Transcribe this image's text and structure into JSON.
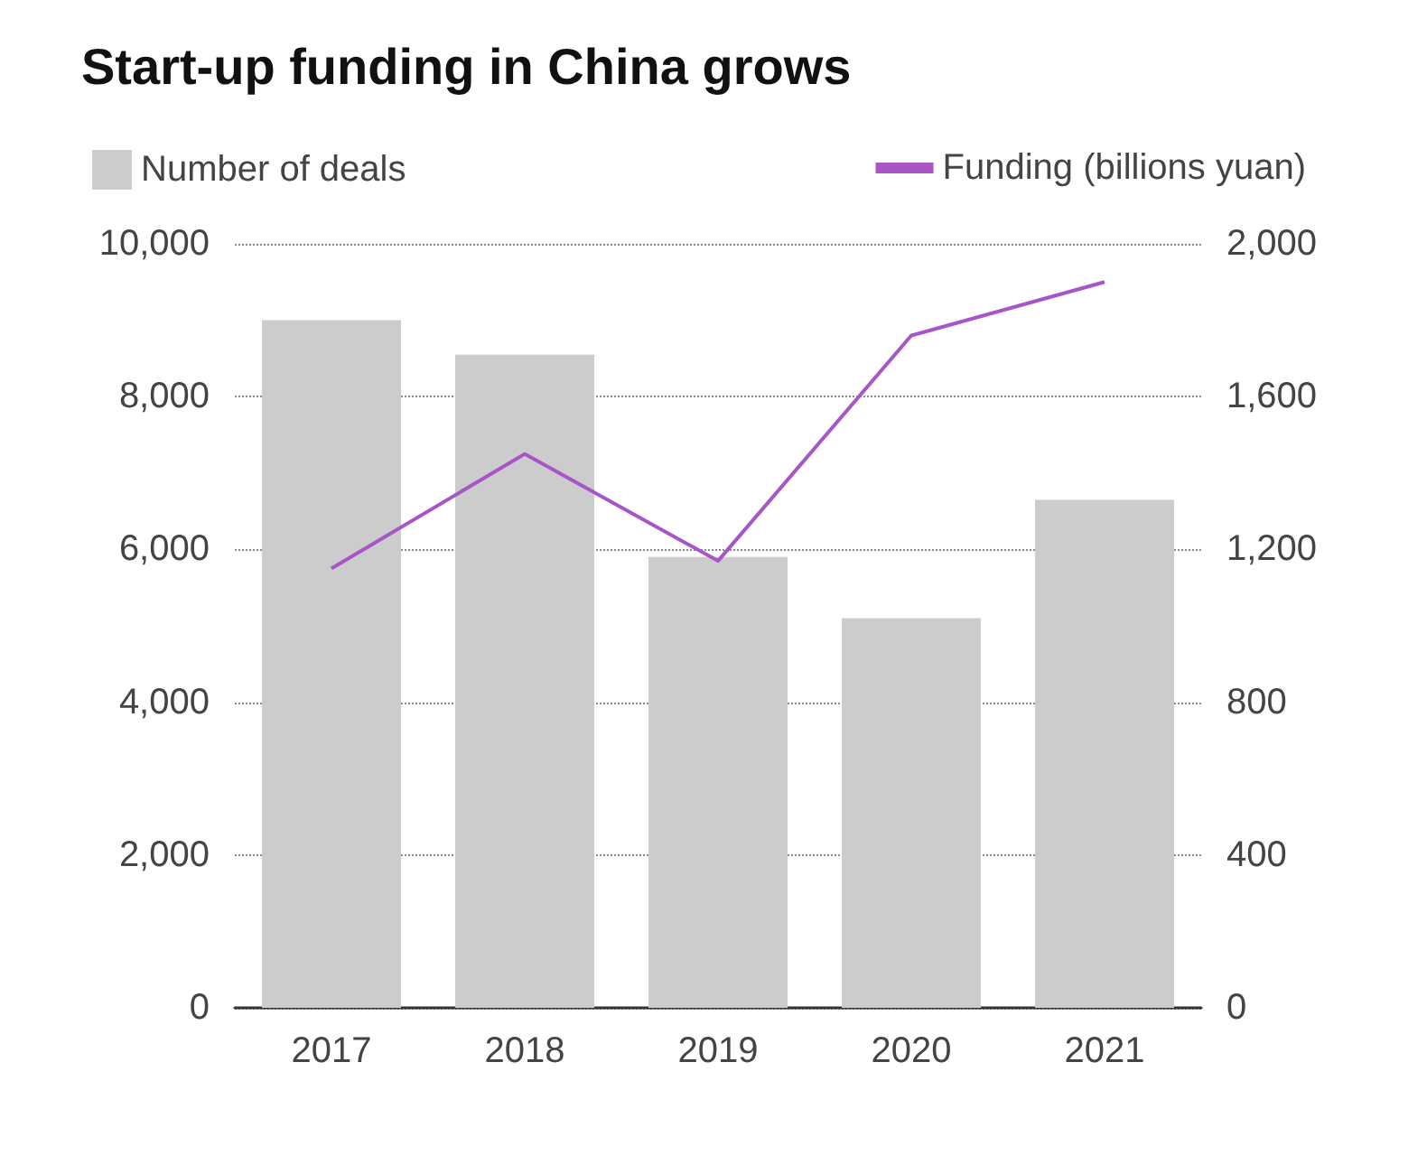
{
  "chart_data": {
    "type": "bar",
    "title": "Start-up funding in China grows",
    "categories": [
      "2017",
      "2018",
      "2019",
      "2020",
      "2021"
    ],
    "series": [
      {
        "name": "Number of deals",
        "color": "#cccccc",
        "values": [
          9000,
          8550,
          5900,
          5100,
          6650
        ]
      },
      {
        "name": "Funding (billions yuan)",
        "type": "line",
        "axis": "y2",
        "color": "#a855c8",
        "values": [
          1150,
          1450,
          1170,
          1760,
          1900
        ]
      }
    ],
    "ylim": [
      0,
      10000
    ],
    "yticks": [
      0,
      {
        "value": 2000,
        "label": "2,000"
      },
      {
        "value": 4000,
        "label": "4,000"
      },
      {
        "value": 6000,
        "label": "6,000"
      },
      {
        "value": 8000,
        "label": "8,000"
      },
      {
        "value": 10000,
        "label": "10,000"
      }
    ],
    "y2lim": [
      0,
      2000
    ],
    "y2ticks": [
      0,
      400,
      800,
      {
        "value": 1200,
        "label": "1,200"
      },
      {
        "value": 1600,
        "label": "1,600"
      },
      {
        "value": 2000,
        "label": "2,000"
      }
    ],
    "grid": "y",
    "legend": "top",
    "marker": "none",
    "line_style": "solid"
  }
}
